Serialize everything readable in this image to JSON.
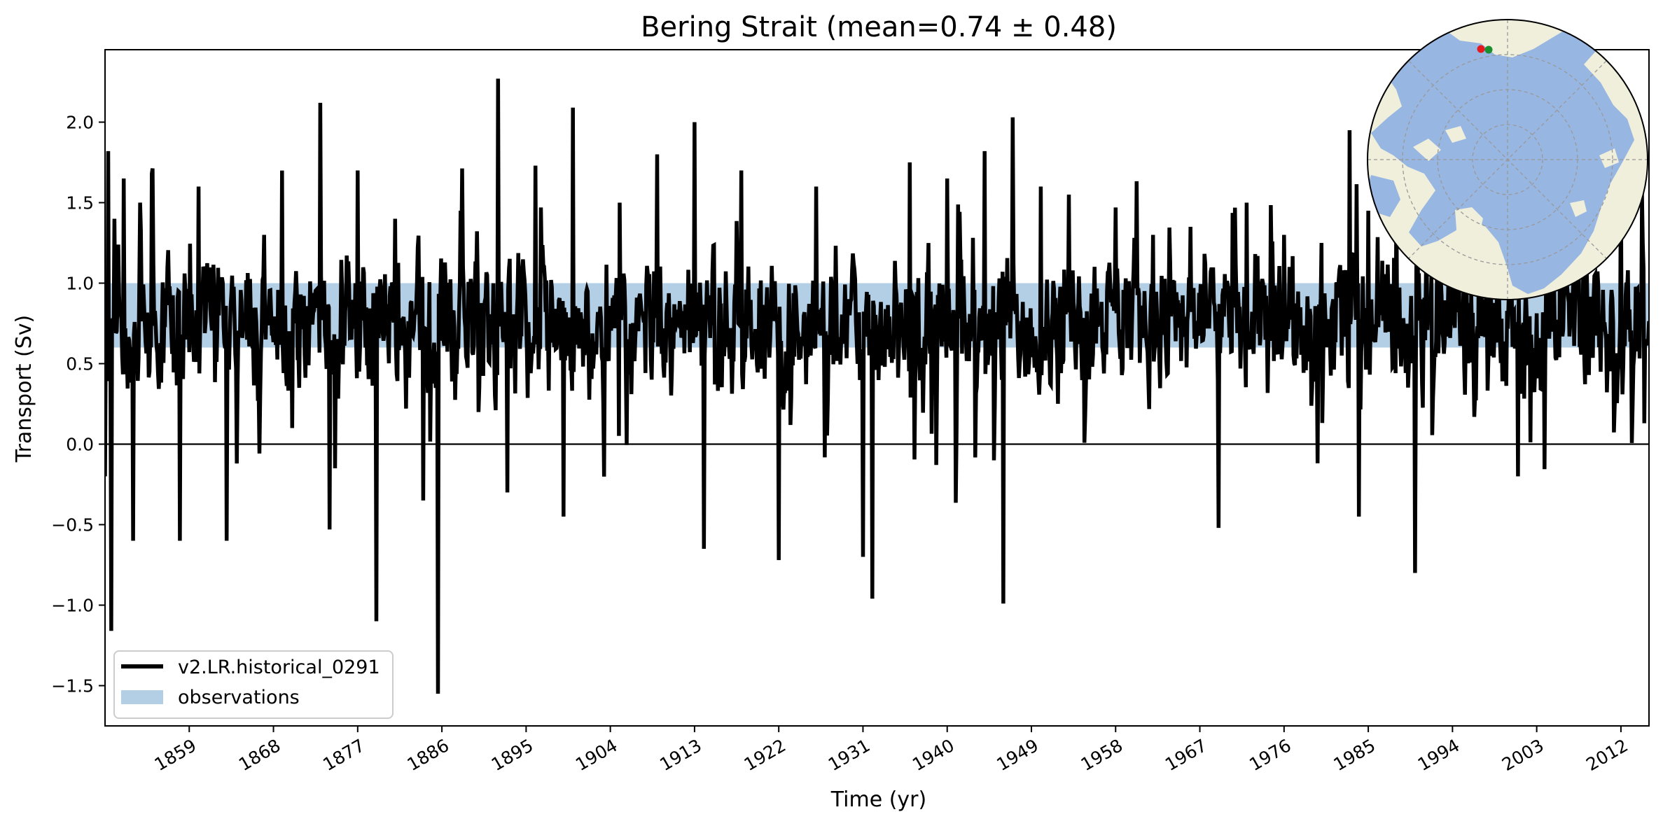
{
  "chart_data": {
    "type": "line",
    "title": "Bering Strait (mean=0.74 ± 0.48)",
    "xlabel": "Time (yr)",
    "ylabel": "Transport (Sv)",
    "xlim": [
      1850,
      2015
    ],
    "ylim": [
      -1.75,
      2.45
    ],
    "xticks": [
      1859,
      1868,
      1877,
      1886,
      1895,
      1904,
      1913,
      1922,
      1931,
      1940,
      1949,
      1958,
      1967,
      1976,
      1985,
      1994,
      2003,
      2012
    ],
    "yticks": [
      -1.5,
      -1.0,
      -0.5,
      0.0,
      0.5,
      1.0,
      1.5,
      2.0
    ],
    "legend": {
      "placement": "lower-left"
    },
    "zero_line": 0.0,
    "series": [
      {
        "name": "v2.LR.historical_0291",
        "color": "#000000",
        "style": "line",
        "monthly_values": "dense monthly transport series, ~1980 points; representative extremes listed",
        "x": [
          1850.0,
          1850.3,
          1850.7,
          1851.0,
          1852.0,
          1853.0,
          1855.0,
          1858.0,
          1860.0,
          1863.0,
          1867.0,
          1870.0,
          1873.0,
          1874.0,
          1877.0,
          1879.0,
          1881.0,
          1884.0,
          1885.6,
          1888.0,
          1892.0,
          1893.0,
          1896.0,
          1899.0,
          1900.0,
          1905.0,
          1909.0,
          1913.0,
          1914.0,
          1918.0,
          1922.0,
          1926.0,
          1931.0,
          1932.0,
          1936.0,
          1940.0,
          1944.0,
          1946.0,
          1947.0,
          1950.0,
          1953.0,
          1958.0,
          1962.0,
          1966.0,
          1969.0,
          1972.0,
          1976.0,
          1980.0,
          1983.0,
          1984.0,
          1985.0,
          1988.0,
          1990.0,
          1994.0,
          1998.0,
          2001.0,
          2004.0,
          2008.0,
          2012.0,
          2014.5
        ],
        "y": [
          -0.2,
          1.82,
          -1.16,
          1.4,
          1.65,
          -0.6,
          1.68,
          -0.6,
          1.6,
          -0.6,
          1.3,
          0.1,
          2.12,
          -0.53,
          1.7,
          -1.1,
          1.4,
          -0.35,
          -1.55,
          1.45,
          2.27,
          -0.3,
          1.73,
          -0.45,
          2.09,
          1.5,
          1.8,
          2.0,
          -0.65,
          1.7,
          -0.72,
          1.6,
          -0.7,
          -0.96,
          1.75,
          1.65,
          1.82,
          -0.99,
          2.03,
          1.6,
          1.55,
          1.47,
          1.3,
          1.35,
          -0.52,
          1.5,
          1.3,
          1.25,
          1.95,
          -0.45,
          1.45,
          1.6,
          -0.8,
          1.45,
          1.2,
          -0.2,
          1.0,
          1.3,
          1.7,
          0.13
        ]
      },
      {
        "name": "observations",
        "color": "#b3cfe5",
        "style": "band",
        "y_low": 0.6,
        "y_high": 1.0
      }
    ],
    "inset_map": {
      "description": "polar stereographic map of the Arctic with two markers near Bering Strait",
      "ocean_color": "#98b6e2",
      "land_color": "#efefdc",
      "marker_colors": [
        "#e41a1c",
        "#1a8f2e"
      ]
    }
  }
}
